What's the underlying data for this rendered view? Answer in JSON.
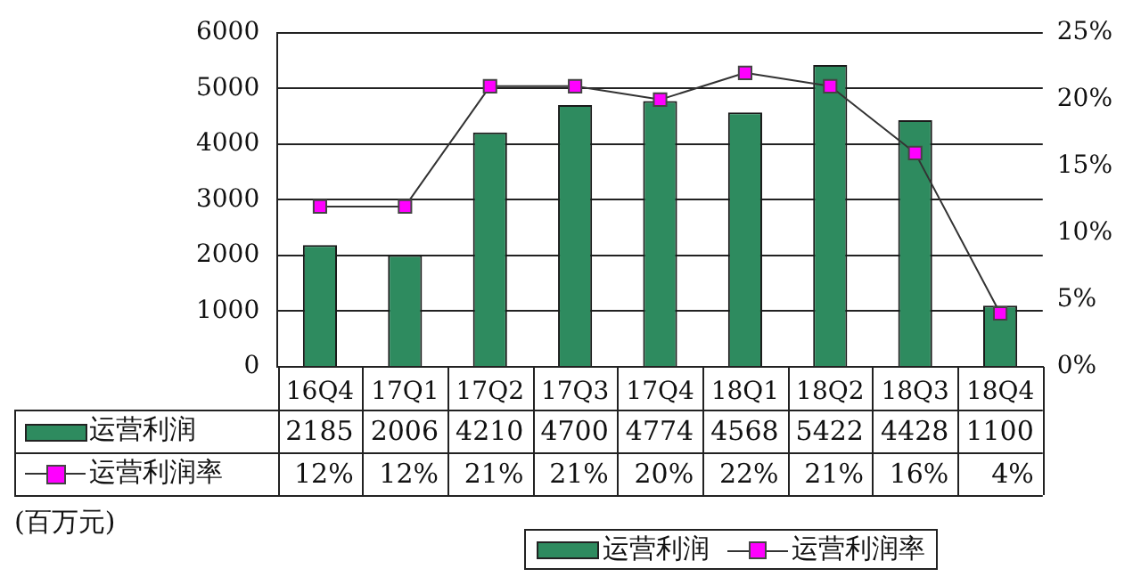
{
  "chart_data": {
    "type": "bar",
    "categories": [
      "16Q4",
      "17Q1",
      "17Q2",
      "17Q3",
      "17Q4",
      "18Q1",
      "18Q2",
      "18Q3",
      "18Q4"
    ],
    "series": [
      {
        "name": "运营利润",
        "color": "#2e8b5f",
        "values": [
          2185,
          2006,
          4210,
          4700,
          4774,
          4568,
          5422,
          4428,
          1100
        ],
        "value_labels": [
          "2185",
          "2006",
          "4210",
          "4700",
          "4774",
          "4568",
          "5422",
          "4428",
          "1100"
        ]
      },
      {
        "name": "运营利润率",
        "type": "line",
        "axis": "y2",
        "color": "#ff00ff",
        "marker": "square",
        "values": [
          12,
          12,
          21,
          21,
          20,
          22,
          21,
          16,
          4
        ],
        "value_labels": [
          "12%",
          "12%",
          "21%",
          "21%",
          "20%",
          "22%",
          "21%",
          "16%",
          "4%"
        ]
      }
    ],
    "ylim": [
      0,
      6000
    ],
    "yticks": [
      0,
      1000,
      2000,
      3000,
      4000,
      5000,
      6000
    ],
    "y2lim": [
      0,
      25
    ],
    "y2ticks": [
      {
        "value": 0,
        "label": "0%"
      },
      {
        "value": 5,
        "label": "5%"
      },
      {
        "value": 10,
        "label": "10%"
      },
      {
        "value": 15,
        "label": "15%"
      },
      {
        "value": 20,
        "label": "20%"
      },
      {
        "value": 25,
        "label": "25%"
      }
    ],
    "grid": "y",
    "legend": "bottom",
    "annotations": [
      "(百万元)"
    ]
  }
}
